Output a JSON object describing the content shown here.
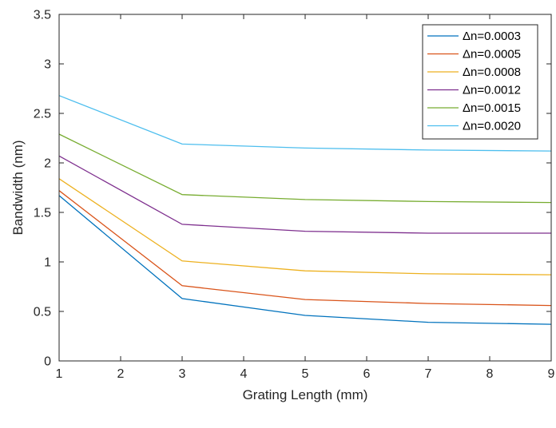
{
  "chart_data": {
    "type": "line",
    "title": "",
    "xlabel": "Grating Length (mm)",
    "ylabel": "Bandwidth (nm)",
    "xlim": [
      1,
      9
    ],
    "ylim": [
      0,
      3.5
    ],
    "xticks": [
      1,
      2,
      3,
      4,
      5,
      6,
      7,
      8,
      9
    ],
    "yticks": [
      0,
      0.5,
      1,
      1.5,
      2,
      2.5,
      3,
      3.5
    ],
    "x": [
      1,
      3,
      5,
      7,
      9
    ],
    "grid": false,
    "legend_position": "top-right",
    "series": [
      {
        "name": "Δn=0.0003",
        "color": "#0072BD",
        "values": [
          1.67,
          0.63,
          0.46,
          0.39,
          0.37
        ]
      },
      {
        "name": "Δn=0.0005",
        "color": "#D95319",
        "values": [
          1.72,
          0.76,
          0.62,
          0.58,
          0.56
        ]
      },
      {
        "name": "Δn=0.0008",
        "color": "#EDB120",
        "values": [
          1.84,
          1.01,
          0.91,
          0.88,
          0.87
        ]
      },
      {
        "name": "Δn=0.0012",
        "color": "#7E2F8E",
        "values": [
          2.07,
          1.38,
          1.31,
          1.29,
          1.29
        ]
      },
      {
        "name": "Δn=0.0015",
        "color": "#77AC30",
        "values": [
          2.29,
          1.68,
          1.63,
          1.61,
          1.6
        ]
      },
      {
        "name": "Δn=0.0020",
        "color": "#4DBEEE",
        "values": [
          2.68,
          2.19,
          2.15,
          2.13,
          2.12
        ]
      }
    ]
  }
}
